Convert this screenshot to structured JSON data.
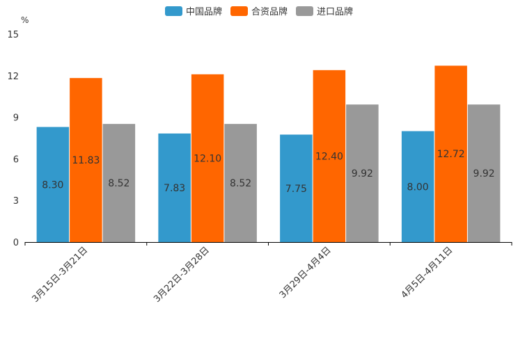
{
  "chart_data": {
    "type": "bar",
    "title": "",
    "ylabel": "%",
    "xlabel": "",
    "ylim": [
      0,
      15
    ],
    "yticks": [
      0,
      3,
      6,
      9,
      12,
      15
    ],
    "grid": false,
    "legend_position": "top-center",
    "categories": [
      "3月15日-3月21日",
      "3月22日-3月28日",
      "3月29日-4月4日",
      "4月5日-4月11日"
    ],
    "series": [
      {
        "name": "中国品牌",
        "color": "#3399cc",
        "values": [
          8.3,
          7.83,
          7.75,
          8.0
        ],
        "labels": [
          "8.30",
          "7.83",
          "7.75",
          "8.00"
        ]
      },
      {
        "name": "合资品牌",
        "color": "#ff6600",
        "values": [
          11.83,
          12.1,
          12.4,
          12.72
        ],
        "labels": [
          "11.83",
          "12.10",
          "12.40",
          "12.72"
        ]
      },
      {
        "name": "进口品牌",
        "color": "#999999",
        "values": [
          8.52,
          8.52,
          9.92,
          9.92
        ],
        "labels": [
          "8.52",
          "8.52",
          "9.92",
          "9.92"
        ]
      }
    ]
  }
}
